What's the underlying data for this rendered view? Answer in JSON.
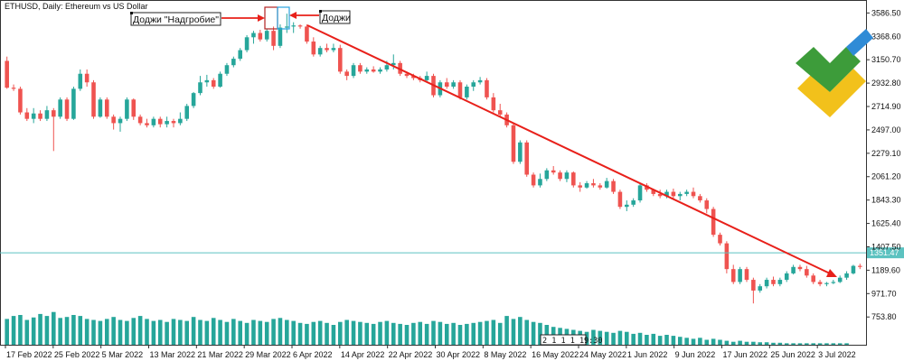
{
  "title": "ETHUSD, Daily:  Ethereum vs US Dollar",
  "colors": {
    "bull": "#26a69a",
    "bear": "#ef5350",
    "arrow": "#e8201a",
    "level_line": "#5cc2c0",
    "level_label_bg": "#5cc2c0",
    "volume": "#26a69a",
    "box_red": "#b22222",
    "box_blue": "#29a3e0",
    "axis": "#333333"
  },
  "annotations": {
    "doji_gravestone": "Доджи \"Надгробие\"",
    "doji": "Доджи",
    "time_box": "2 1 1 1 19:30"
  },
  "level_label": "1351.47",
  "logo": {
    "name": "brand-logo",
    "colors": [
      "#3d9c3a",
      "#f2c11b",
      "#2f8bd6"
    ]
  },
  "chart_data": {
    "type": "candlestick",
    "title": "ETHUSD, Daily:  Ethereum vs US Dollar",
    "ylim": [
      680,
      3640
    ],
    "y_ticks": [
      "3586.50",
      "3368.60",
      "3150.70",
      "2932.80",
      "2714.90",
      "2497.00",
      "2279.10",
      "2061.20",
      "1843.30",
      "1625.40",
      "1407.50",
      "1189.60",
      "971.70",
      "753.80"
    ],
    "x_tick_labels": [
      "17 Feb 2022",
      "25 Feb 2022",
      "5 Mar 2022",
      "13 Mar 2022",
      "21 Mar 2022",
      "29 Mar 2022",
      "6 Apr 2022",
      "14 Apr 2022",
      "22 Apr 2022",
      "30 Apr 2022",
      "8 May 2022",
      "16 May 2022",
      "24 May 2022",
      "1 Jun 2022",
      "9 Jun 2022",
      "17 Jun 2022",
      "25 Jun 2022",
      "3 Jul 2022"
    ],
    "horizontal_level": 1351.47,
    "candles": [
      [
        3140,
        3180,
        2880,
        2890
      ],
      [
        2890,
        2920,
        2860,
        2880
      ],
      [
        2880,
        2900,
        2640,
        2660
      ],
      [
        2660,
        2700,
        2580,
        2600
      ],
      [
        2600,
        2700,
        2560,
        2650
      ],
      [
        2650,
        2680,
        2580,
        2600
      ],
      [
        2600,
        2720,
        2580,
        2680
      ],
      [
        2680,
        2700,
        2300,
        2620
      ],
      [
        2620,
        2800,
        2600,
        2780
      ],
      [
        2780,
        2800,
        2580,
        2600
      ],
      [
        2600,
        2900,
        2590,
        2880
      ],
      [
        2880,
        3060,
        2860,
        3020
      ],
      [
        3020,
        3060,
        2900,
        2940
      ],
      [
        2940,
        2960,
        2600,
        2620
      ],
      [
        2620,
        2800,
        2610,
        2780
      ],
      [
        2780,
        2800,
        2600,
        2620
      ],
      [
        2620,
        2640,
        2500,
        2560
      ],
      [
        2560,
        2620,
        2480,
        2600
      ],
      [
        2600,
        2800,
        2580,
        2780
      ],
      [
        2780,
        2790,
        2590,
        2620
      ],
      [
        2620,
        2640,
        2540,
        2560
      ],
      [
        2560,
        2600,
        2520,
        2540
      ],
      [
        2540,
        2620,
        2520,
        2600
      ],
      [
        2600,
        2620,
        2520,
        2550
      ],
      [
        2550,
        2620,
        2520,
        2580
      ],
      [
        2580,
        2600,
        2520,
        2560
      ],
      [
        2560,
        2660,
        2540,
        2600
      ],
      [
        2600,
        2740,
        2580,
        2720
      ],
      [
        2720,
        2850,
        2700,
        2840
      ],
      [
        2840,
        3000,
        2820,
        2940
      ],
      [
        2940,
        3010,
        2900,
        2960
      ],
      [
        2960,
        2980,
        2880,
        2900
      ],
      [
        2900,
        3040,
        2890,
        3020
      ],
      [
        3020,
        3120,
        3000,
        3100
      ],
      [
        3100,
        3180,
        3080,
        3160
      ],
      [
        3160,
        3260,
        3140,
        3240
      ],
      [
        3240,
        3380,
        3220,
        3360
      ],
      [
        3360,
        3420,
        3300,
        3400
      ],
      [
        3400,
        3430,
        3320,
        3340
      ],
      [
        3340,
        3440,
        3320,
        3420
      ],
      [
        3420,
        3460,
        3240,
        3280
      ],
      [
        3280,
        3480,
        3260,
        3450
      ],
      [
        3450,
        3580,
        3400,
        3460
      ],
      [
        3460,
        3500,
        3400,
        3470
      ],
      [
        3470,
        3480,
        3440,
        3460
      ],
      [
        3460,
        3480,
        3300,
        3320
      ],
      [
        3320,
        3360,
        3180,
        3200
      ],
      [
        3200,
        3280,
        3180,
        3260
      ],
      [
        3260,
        3300,
        3220,
        3240
      ],
      [
        3240,
        3300,
        3220,
        3260
      ],
      [
        3260,
        3290,
        3020,
        3040
      ],
      [
        3040,
        3060,
        2960,
        3000
      ],
      [
        3000,
        3120,
        2980,
        3100
      ],
      [
        3100,
        3120,
        3020,
        3040
      ],
      [
        3040,
        3080,
        3020,
        3060
      ],
      [
        3060,
        3090,
        3030,
        3040
      ],
      [
        3040,
        3080,
        3020,
        3060
      ],
      [
        3060,
        3140,
        3040,
        3100
      ],
      [
        3100,
        3200,
        3060,
        3120
      ],
      [
        3120,
        3140,
        3000,
        3020
      ],
      [
        3020,
        3040,
        2980,
        3000
      ],
      [
        3000,
        3020,
        2960,
        2980
      ],
      [
        2980,
        3000,
        2940,
        2960
      ],
      [
        2960,
        3040,
        2940,
        3000
      ],
      [
        3000,
        3020,
        2800,
        2820
      ],
      [
        2820,
        2960,
        2800,
        2940
      ],
      [
        2940,
        2980,
        2880,
        2900
      ],
      [
        2900,
        2960,
        2880,
        2940
      ],
      [
        2940,
        2960,
        2780,
        2800
      ],
      [
        2800,
        2920,
        2780,
        2900
      ],
      [
        2900,
        2960,
        2860,
        2940
      ],
      [
        2940,
        2990,
        2920,
        2960
      ],
      [
        2960,
        2980,
        2780,
        2800
      ],
      [
        2800,
        2840,
        2660,
        2680
      ],
      [
        2680,
        2740,
        2620,
        2640
      ],
      [
        2640,
        2660,
        2520,
        2540
      ],
      [
        2540,
        2560,
        2180,
        2200
      ],
      [
        2200,
        2400,
        2180,
        2380
      ],
      [
        2380,
        2400,
        2060,
        2080
      ],
      [
        2080,
        2100,
        1960,
        1980
      ],
      [
        1980,
        2090,
        1960,
        2040
      ],
      [
        2040,
        2140,
        2020,
        2120
      ],
      [
        2120,
        2160,
        2080,
        2100
      ],
      [
        2100,
        2120,
        2020,
        2040
      ],
      [
        2040,
        2120,
        2010,
        2100
      ],
      [
        2100,
        2110,
        1960,
        1980
      ],
      [
        1980,
        2010,
        1920,
        1960
      ],
      [
        1960,
        2020,
        1950,
        2000
      ],
      [
        2000,
        2040,
        1960,
        1980
      ],
      [
        1980,
        2000,
        1940,
        1960
      ],
      [
        1960,
        2050,
        1950,
        2020
      ],
      [
        2020,
        2040,
        1900,
        1920
      ],
      [
        1920,
        1940,
        1760,
        1780
      ],
      [
        1780,
        1840,
        1740,
        1800
      ],
      [
        1800,
        1860,
        1780,
        1840
      ],
      [
        1840,
        2000,
        1820,
        1980
      ],
      [
        1980,
        2000,
        1920,
        1940
      ],
      [
        1940,
        1950,
        1880,
        1900
      ],
      [
        1900,
        1940,
        1860,
        1880
      ],
      [
        1880,
        1940,
        1860,
        1920
      ],
      [
        1920,
        1950,
        1860,
        1880
      ],
      [
        1880,
        1920,
        1840,
        1900
      ],
      [
        1900,
        1940,
        1880,
        1920
      ],
      [
        1920,
        1960,
        1860,
        1880
      ],
      [
        1880,
        1900,
        1820,
        1840
      ],
      [
        1840,
        1860,
        1720,
        1760
      ],
      [
        1760,
        1780,
        1500,
        1520
      ],
      [
        1520,
        1540,
        1420,
        1440
      ],
      [
        1440,
        1460,
        1160,
        1200
      ],
      [
        1200,
        1240,
        1060,
        1080
      ],
      [
        1080,
        1220,
        1060,
        1200
      ],
      [
        1200,
        1220,
        1080,
        1100
      ],
      [
        1100,
        1120,
        880,
        1000
      ],
      [
        1000,
        1060,
        980,
        1040
      ],
      [
        1040,
        1120,
        1020,
        1100
      ],
      [
        1100,
        1130,
        1040,
        1060
      ],
      [
        1060,
        1120,
        1040,
        1100
      ],
      [
        1100,
        1180,
        1080,
        1160
      ],
      [
        1160,
        1240,
        1150,
        1220
      ],
      [
        1220,
        1240,
        1180,
        1200
      ],
      [
        1200,
        1230,
        1120,
        1140
      ],
      [
        1140,
        1160,
        1060,
        1080
      ],
      [
        1080,
        1100,
        1040,
        1060
      ],
      [
        1060,
        1080,
        1040,
        1070
      ],
      [
        1070,
        1100,
        1060,
        1080
      ],
      [
        1080,
        1140,
        1070,
        1120
      ],
      [
        1120,
        1180,
        1100,
        1160
      ],
      [
        1160,
        1240,
        1150,
        1230
      ],
      [
        1230,
        1250,
        1200,
        1220
      ]
    ],
    "volume": [
      52,
      58,
      60,
      50,
      55,
      62,
      58,
      66,
      54,
      56,
      60,
      58,
      52,
      50,
      48,
      52,
      56,
      50,
      48,
      54,
      58,
      52,
      48,
      50,
      46,
      52,
      50,
      48,
      56,
      50,
      48,
      54,
      50,
      46,
      52,
      48,
      44,
      50,
      48,
      46,
      52,
      54,
      50,
      48,
      44,
      42,
      46,
      48,
      44,
      40,
      46,
      50,
      48,
      46,
      44,
      42,
      46,
      48,
      44,
      42,
      40,
      44,
      46,
      42,
      48,
      46,
      42,
      44,
      40,
      42,
      44,
      46,
      48,
      50,
      44,
      58,
      52,
      56,
      50,
      46,
      44,
      40,
      36,
      34,
      32,
      30,
      28,
      26,
      30,
      28,
      26,
      24,
      28,
      26,
      22,
      24,
      20,
      22,
      18,
      20,
      18,
      16,
      14,
      12,
      14,
      10,
      12,
      10,
      8,
      6,
      8,
      6,
      6,
      5,
      5,
      4,
      4,
      3,
      3,
      3,
      3,
      3,
      3,
      3,
      3,
      3,
      3
    ]
  }
}
